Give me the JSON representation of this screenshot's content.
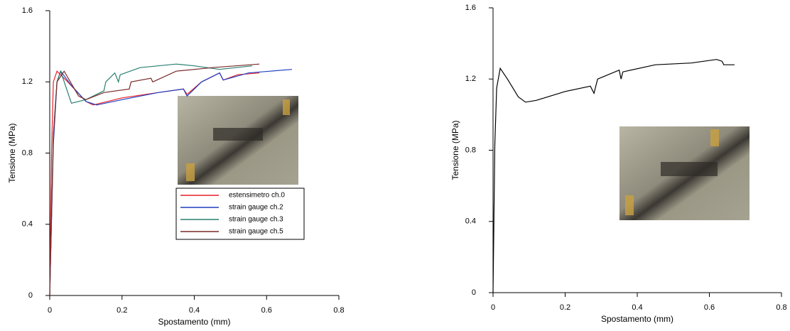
{
  "chart_data": [
    {
      "type": "line",
      "xlabel": "Spostamento (mm)",
      "ylabel": "Tensione (MPa)",
      "xlim": [
        0,
        0.8
      ],
      "ylim": [
        0,
        1.6
      ],
      "xticks": [
        0,
        0.2,
        0.4,
        0.6,
        0.8
      ],
      "yticks": [
        0,
        0.4,
        0.8,
        1.2,
        1.6
      ],
      "series": [
        {
          "name": "estensimetro ch.0",
          "color": "#e8202a",
          "x": [
            0,
            0.005,
            0.01,
            0.02,
            0.05,
            0.1,
            0.12,
            0.2,
            0.3,
            0.37,
            0.38,
            0.42,
            0.47,
            0.48,
            0.52,
            0.58
          ],
          "values": [
            0,
            0.8,
            1.2,
            1.26,
            1.2,
            1.09,
            1.07,
            1.11,
            1.14,
            1.16,
            1.13,
            1.2,
            1.25,
            1.21,
            1.24,
            1.25
          ]
        },
        {
          "name": "strain gauge ch.2",
          "color": "#1f3fbf",
          "x": [
            0,
            0.01,
            0.02,
            0.03,
            0.06,
            0.1,
            0.13,
            0.2,
            0.3,
            0.37,
            0.38,
            0.42,
            0.47,
            0.48,
            0.55,
            0.67
          ],
          "values": [
            0,
            0.85,
            1.2,
            1.26,
            1.18,
            1.09,
            1.07,
            1.1,
            1.14,
            1.16,
            1.12,
            1.2,
            1.25,
            1.21,
            1.25,
            1.27
          ]
        },
        {
          "name": "strain gauge ch.3",
          "color": "#2a7f70",
          "x": [
            0,
            0.01,
            0.02,
            0.03,
            0.06,
            0.1,
            0.15,
            0.155,
            0.18,
            0.19,
            0.195,
            0.25,
            0.35,
            0.4,
            0.47,
            0.56
          ],
          "values": [
            0,
            0.9,
            1.2,
            1.26,
            1.08,
            1.1,
            1.15,
            1.2,
            1.25,
            1.2,
            1.24,
            1.28,
            1.3,
            1.29,
            1.27,
            1.29
          ]
        },
        {
          "name": "strain gauge ch.5",
          "color": "#7a2a2a",
          "x": [
            0,
            0.01,
            0.02,
            0.04,
            0.08,
            0.1,
            0.15,
            0.22,
            0.225,
            0.28,
            0.285,
            0.35,
            0.45,
            0.58
          ],
          "values": [
            0,
            0.9,
            1.2,
            1.26,
            1.12,
            1.1,
            1.14,
            1.16,
            1.2,
            1.22,
            1.2,
            1.26,
            1.28,
            1.3
          ]
        }
      ]
    },
    {
      "type": "line",
      "xlabel": "Spostamento (mm)",
      "ylabel": "Tensione (MPa)",
      "xlim": [
        0,
        0.8
      ],
      "ylim": [
        0,
        1.6
      ],
      "xticks": [
        0,
        0.2,
        0.4,
        0.6,
        0.8
      ],
      "yticks": [
        0,
        0.4,
        0.8,
        1.2,
        1.6
      ],
      "series": [
        {
          "color": "#000000",
          "x": [
            0,
            0.005,
            0.01,
            0.02,
            0.04,
            0.07,
            0.09,
            0.12,
            0.2,
            0.27,
            0.28,
            0.29,
            0.35,
            0.355,
            0.36,
            0.45,
            0.55,
            0.62,
            0.635,
            0.64,
            0.67
          ],
          "values": [
            0,
            0.83,
            1.15,
            1.26,
            1.2,
            1.1,
            1.07,
            1.08,
            1.13,
            1.16,
            1.12,
            1.2,
            1.25,
            1.2,
            1.24,
            1.28,
            1.29,
            1.31,
            1.3,
            1.28,
            1.28
          ]
        }
      ]
    }
  ]
}
